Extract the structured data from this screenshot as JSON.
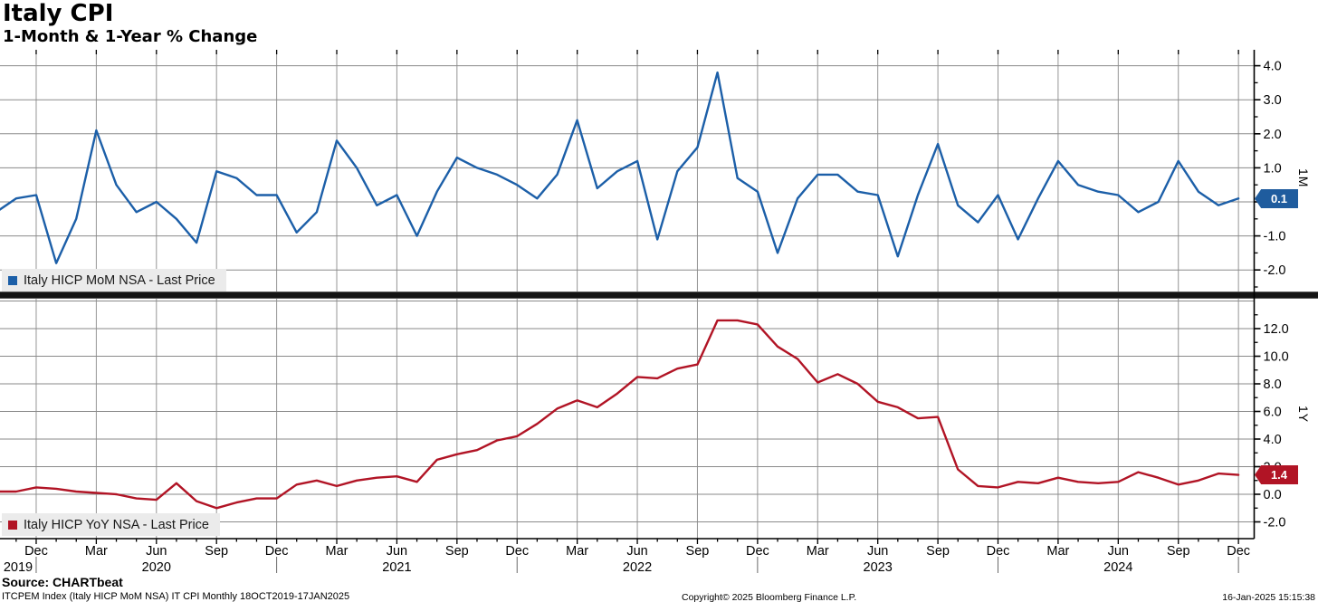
{
  "header": {
    "title": "Italy CPI",
    "subtitle": "1-Month & 1-Year % Change"
  },
  "colors": {
    "mom_line": "#1c5fa8",
    "yoy_line": "#b11425",
    "badge_mom_bg": "#1f5c9e",
    "badge_yoy_bg": "#b11425",
    "legend_bg": "#ebebeb",
    "grid_vertical": "#959595",
    "grid_horizontal": "#8a8a8a",
    "axis": "#000000",
    "divider": "#141414"
  },
  "months": [
    "Oct 2019",
    "Nov 2019",
    "Dec 2019",
    "Jan 2020",
    "Feb 2020",
    "Mar 2020",
    "Apr 2020",
    "May 2020",
    "Jun 2020",
    "Jul 2020",
    "Aug 2020",
    "Sep 2020",
    "Oct 2020",
    "Nov 2020",
    "Dec 2020",
    "Jan 2021",
    "Feb 2021",
    "Mar 2021",
    "Apr 2021",
    "May 2021",
    "Jun 2021",
    "Jul 2021",
    "Aug 2021",
    "Sep 2021",
    "Oct 2021",
    "Nov 2021",
    "Dec 2021",
    "Jan 2022",
    "Feb 2022",
    "Mar 2022",
    "Apr 2022",
    "May 2022",
    "Jun 2022",
    "Jul 2022",
    "Aug 2022",
    "Sep 2022",
    "Oct 2022",
    "Nov 2022",
    "Dec 2022",
    "Jan 2023",
    "Feb 2023",
    "Mar 2023",
    "Apr 2023",
    "May 2023",
    "Jun 2023",
    "Jul 2023",
    "Aug 2023",
    "Sep 2023",
    "Oct 2023",
    "Nov 2023",
    "Dec 2023",
    "Jan 2024",
    "Feb 2024",
    "Mar 2024",
    "Apr 2024",
    "May 2024",
    "Jun 2024",
    "Jul 2024",
    "Aug 2024",
    "Sep 2024",
    "Oct 2024",
    "Nov 2024",
    "Dec 2024"
  ],
  "chart_data": [
    {
      "type": "line",
      "panel": "top",
      "series_name": "Italy HICP MoM NSA - Last Price",
      "axis_label": "1M",
      "last_value_label": "0.1",
      "ylim": [
        -2.6,
        4.5
      ],
      "yticks": [
        4.0,
        3.0,
        2.0,
        1.0,
        0.0,
        -1.0,
        -2.0
      ],
      "grid": "on",
      "legend_position": "bottom-left",
      "values": [
        -0.3,
        0.1,
        0.2,
        -1.8,
        -0.5,
        2.1,
        0.5,
        -0.3,
        0.0,
        -0.5,
        -1.2,
        0.9,
        0.7,
        0.2,
        0.2,
        -0.9,
        -0.3,
        1.8,
        1.0,
        -0.1,
        0.2,
        -1.0,
        0.3,
        1.3,
        1.0,
        0.8,
        0.5,
        0.1,
        0.8,
        2.4,
        0.4,
        0.9,
        1.2,
        -1.1,
        0.9,
        1.6,
        3.8,
        0.7,
        0.3,
        -1.5,
        0.1,
        0.8,
        0.8,
        0.3,
        0.2,
        -1.6,
        0.2,
        1.7,
        -0.1,
        -0.6,
        0.2,
        -1.1,
        0.1,
        1.2,
        0.5,
        0.3,
        0.2,
        -0.3,
        0.0,
        1.2,
        0.3,
        -0.1,
        0.1
      ]
    },
    {
      "type": "line",
      "panel": "bottom",
      "series_name": "Italy HICP YoY NSA - Last Price",
      "axis_label": "1Y",
      "last_value_label": "1.4",
      "ylim": [
        -3.2,
        14.2
      ],
      "yticks": [
        12.0,
        10.0,
        8.0,
        6.0,
        4.0,
        2.0,
        0.0,
        -2.0
      ],
      "grid": "on",
      "legend_position": "bottom-left",
      "values": [
        0.2,
        0.2,
        0.5,
        0.4,
        0.2,
        0.1,
        0.0,
        -0.3,
        -0.4,
        0.8,
        -0.5,
        -1.0,
        -0.6,
        -0.3,
        -0.3,
        0.7,
        1.0,
        0.6,
        1.0,
        1.2,
        1.3,
        0.9,
        2.5,
        2.9,
        3.2,
        3.9,
        4.2,
        5.1,
        6.2,
        6.8,
        6.3,
        7.3,
        8.5,
        8.4,
        9.1,
        9.4,
        12.6,
        12.6,
        12.3,
        10.7,
        9.8,
        8.1,
        8.7,
        8.0,
        6.7,
        6.3,
        5.5,
        5.6,
        1.8,
        0.6,
        0.5,
        0.9,
        0.8,
        1.2,
        0.9,
        0.8,
        0.9,
        1.6,
        1.2,
        0.7,
        1.0,
        1.5,
        1.4
      ]
    }
  ],
  "x_axis": {
    "quarter_tick_months": [
      "Dec",
      "Mar",
      "Jun",
      "Sep"
    ],
    "year_labels": [
      "2019",
      "2020",
      "2021",
      "2022",
      "2023",
      "2024"
    ]
  },
  "footer": {
    "source": "Source: CHARTbeat",
    "ticker_info": "ITCPEM Index (Italy HICP MoM NSA) IT CPI  Monthly 18OCT2019-17JAN2025",
    "copyright": "Copyright© 2025 Bloomberg Finance L.P.",
    "timestamp": "16-Jan-2025 15:15:38"
  }
}
